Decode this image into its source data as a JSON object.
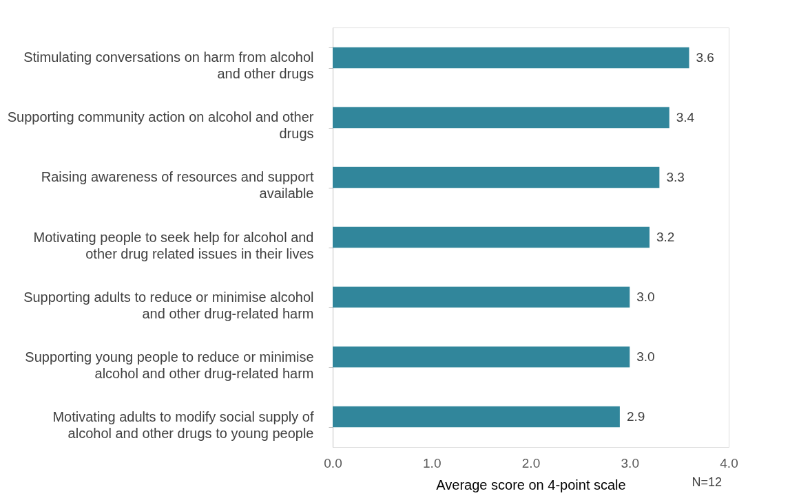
{
  "chart_data": {
    "type": "bar",
    "orientation": "horizontal",
    "categories": [
      "Stimulating conversations on harm from alcohol and other drugs",
      "Supporting community action on alcohol and other drugs",
      "Raising awareness of resources and support available",
      "Motivating people to seek help for alcohol and other drug related issues in their lives",
      "Supporting adults to reduce or minimise alcohol and other drug-related harm",
      "Supporting young people to reduce or minimise alcohol and other drug-related harm",
      "Motivating adults to modify social supply of alcohol and other drugs to young people"
    ],
    "values": [
      3.6,
      3.4,
      3.3,
      3.2,
      3.0,
      3.0,
      2.9
    ],
    "value_labels": [
      "3.6",
      "3.4",
      "3.3",
      "3.2",
      "3.0",
      "3.0",
      "2.9"
    ],
    "color": "#31869b",
    "xlim": [
      0,
      4
    ],
    "xticks": [
      {
        "value": 0,
        "label": "0.0"
      },
      {
        "value": 1,
        "label": "1.0"
      },
      {
        "value": 2,
        "label": "2.0"
      },
      {
        "value": 3,
        "label": "3.0"
      },
      {
        "value": 4,
        "label": "4.0"
      }
    ],
    "xlabel": "Average score on 4-point scale",
    "annotations": [
      "N=12"
    ],
    "grid": false
  }
}
